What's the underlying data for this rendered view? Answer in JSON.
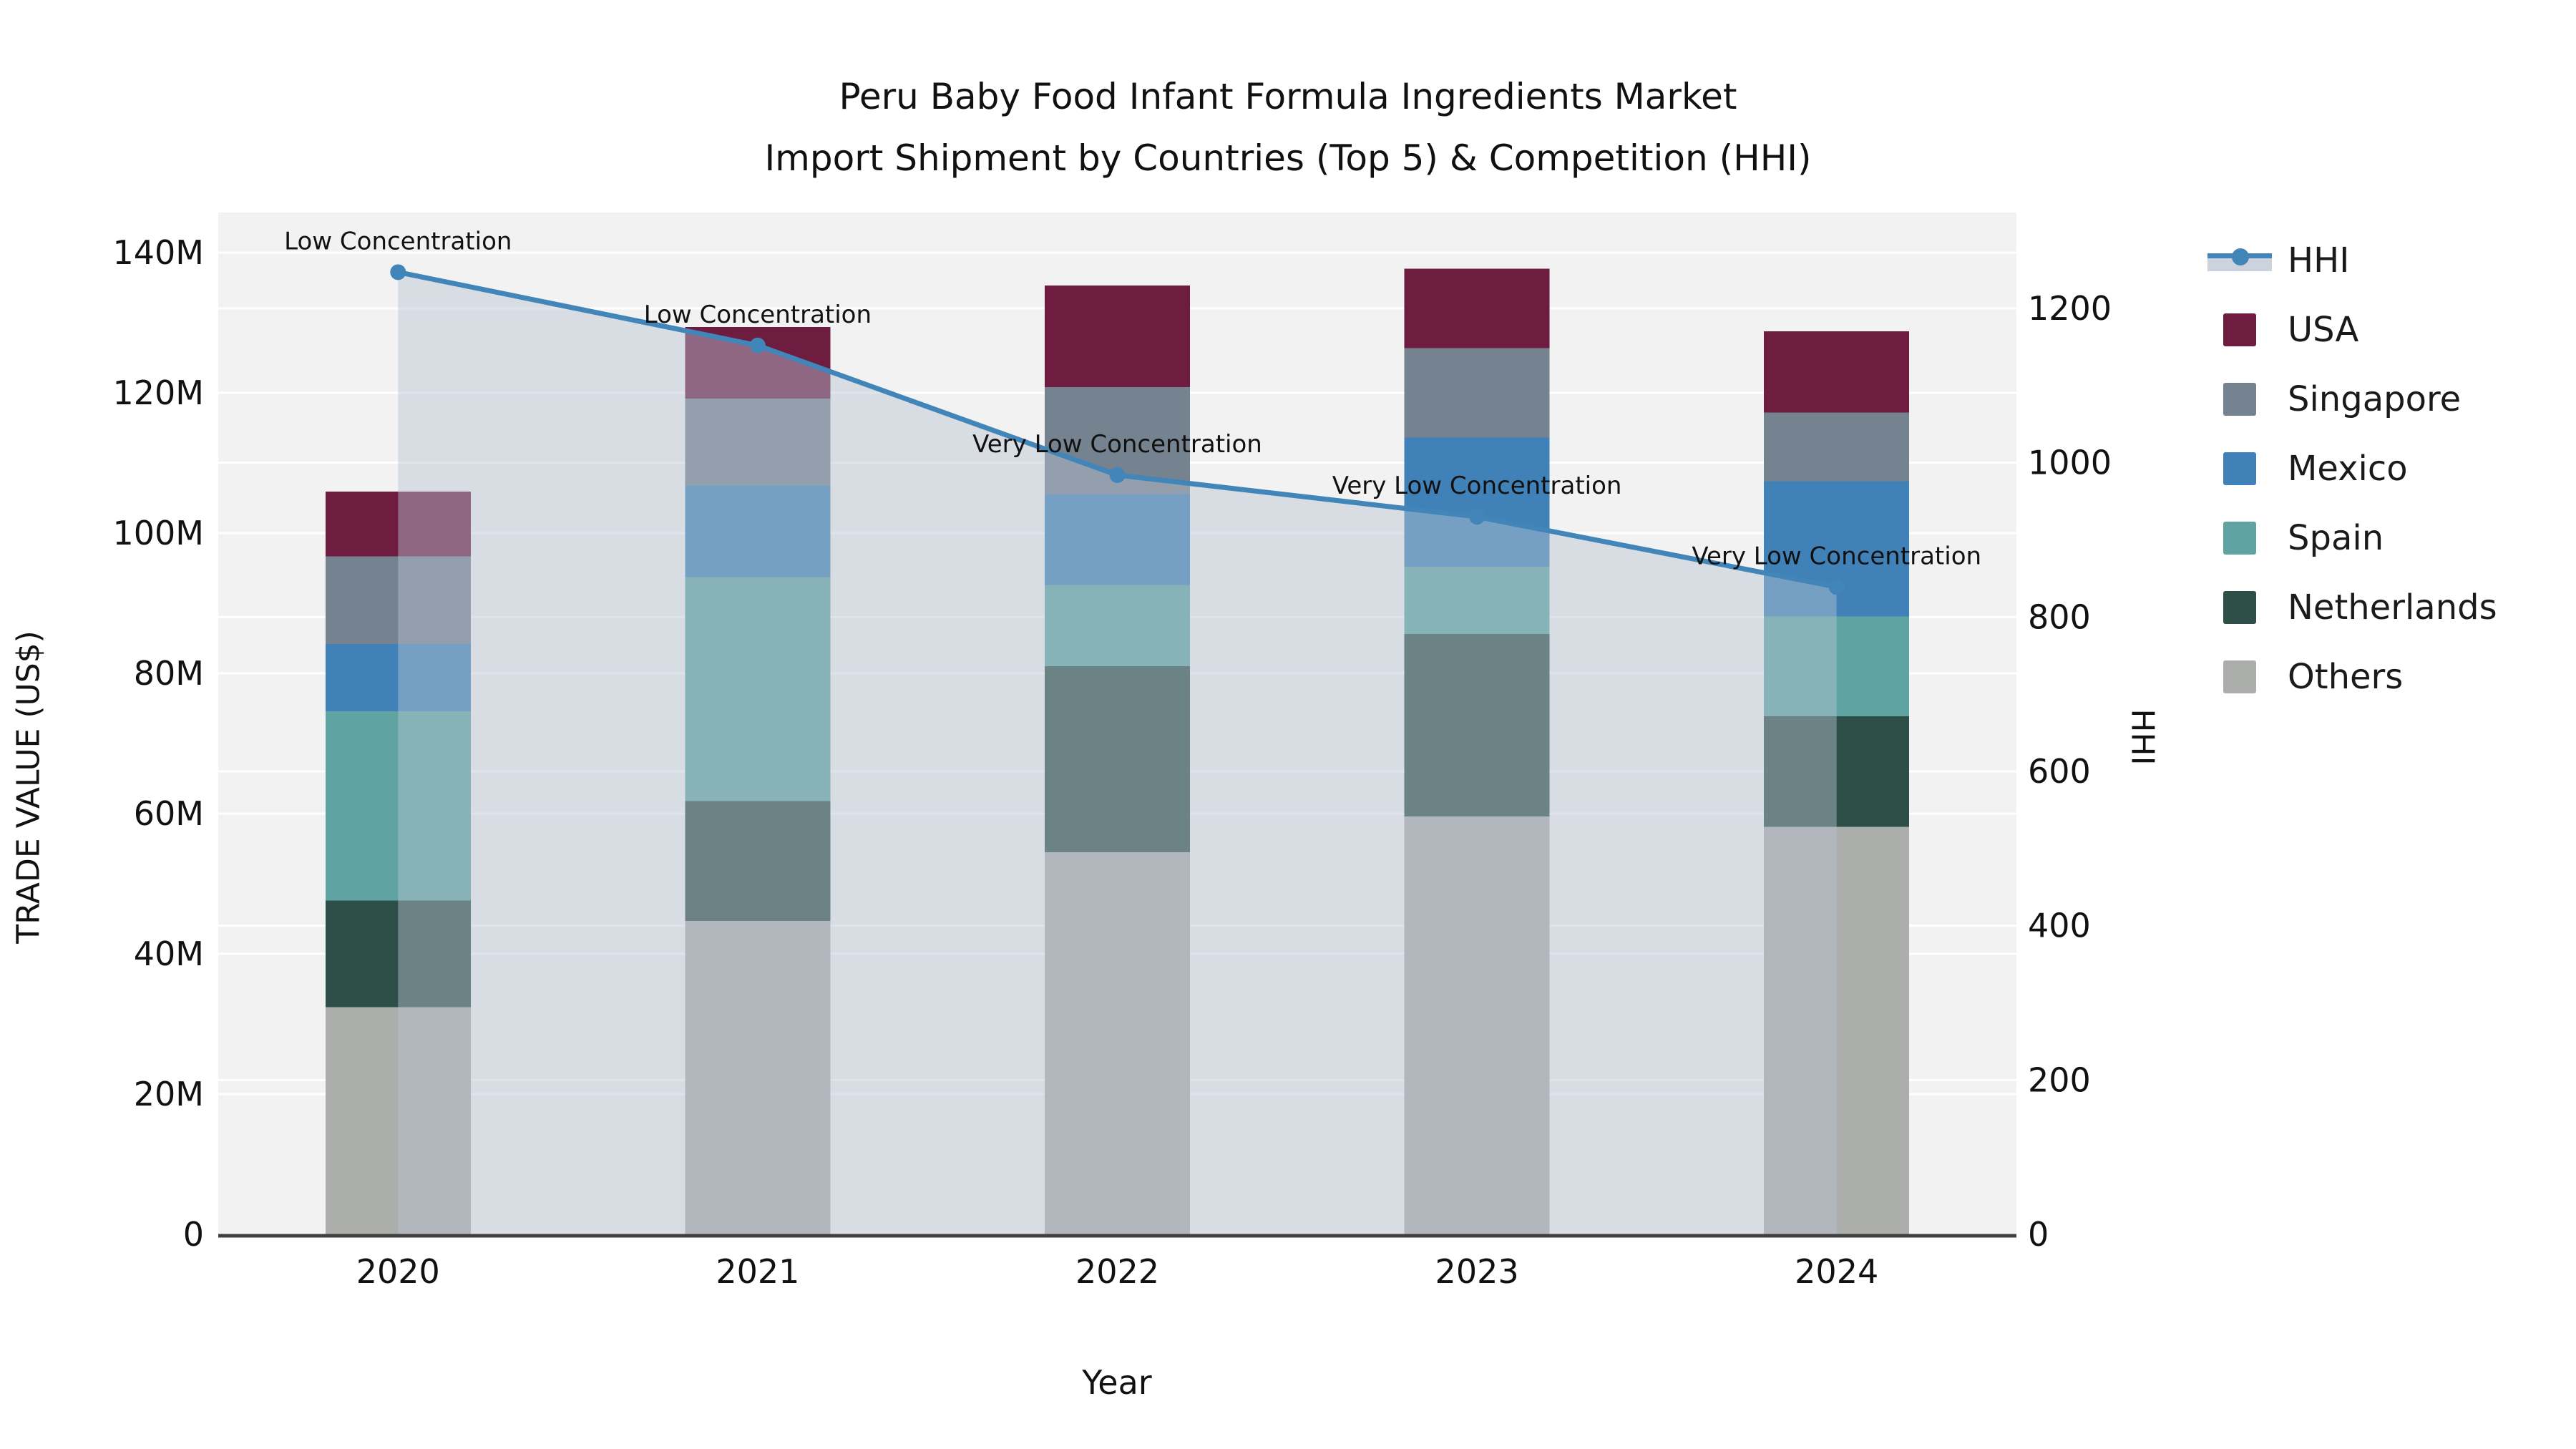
{
  "title": {
    "line1": "Peru Baby Food Infant Formula Ingredients Market",
    "line2": "Import Shipment by Countries (Top 5) & Competition (HHI)"
  },
  "colors": {
    "plot_bg": "#f2f2f2",
    "gridline": "#ffffff",
    "axis_line": "#3f3f3f",
    "text": "#111111",
    "hhi_line": "#4285b8",
    "hhi_fill": "rgba(185,196,210,0.45)",
    "hhi_band": "#ccd3dc"
  },
  "legend": {
    "items": [
      {
        "label": "HHI",
        "type": "line",
        "color": "#4285b8"
      },
      {
        "label": "USA",
        "type": "box",
        "color": "#6e1c40"
      },
      {
        "label": "Singapore",
        "type": "box",
        "color": "#75828f"
      },
      {
        "label": "Mexico",
        "type": "box",
        "color": "#4081b8"
      },
      {
        "label": "Spain",
        "type": "box",
        "color": "#5fa4a3"
      },
      {
        "label": "Netherlands",
        "type": "box",
        "color": "#2e4f48"
      },
      {
        "label": "Others",
        "type": "box",
        "color": "#acaeab"
      }
    ]
  },
  "chart_data": {
    "type": "bar",
    "stacked": true,
    "title": "Peru Baby Food Infant Formula Ingredients Market Import Shipment by Countries (Top 5) & Competition (HHI)",
    "xlabel": "Year",
    "ylabel": "TRADE VALUE (US$)",
    "ylabel_right": "HHI",
    "unit": "million US$",
    "grid": true,
    "legend_position": "right",
    "categories": [
      "2020",
      "2021",
      "2022",
      "2023",
      "2024"
    ],
    "series": [
      {
        "name": "USA",
        "color": "#6e1c40",
        "values": [
          9.2,
          10.2,
          14.5,
          11.3,
          11.6
        ]
      },
      {
        "name": "Singapore",
        "color": "#75828f",
        "values": [
          12.5,
          12.4,
          15.3,
          12.8,
          9.8
        ]
      },
      {
        "name": "Mexico",
        "color": "#4081b8",
        "values": [
          9.6,
          13.1,
          12.9,
          18.4,
          19.3
        ]
      },
      {
        "name": "Spain",
        "color": "#5fa4a3",
        "values": [
          27.0,
          31.9,
          11.6,
          9.6,
          14.2
        ]
      },
      {
        "name": "Netherlands",
        "color": "#2e4f48",
        "values": [
          15.2,
          17.1,
          26.5,
          26.0,
          15.8
        ]
      },
      {
        "name": "Others",
        "color": "#acaeab",
        "values": [
          32.4,
          44.7,
          54.5,
          59.6,
          58.1
        ]
      }
    ],
    "totals": [
      105.9,
      129.4,
      135.3,
      137.7,
      128.8
    ],
    "line_series": {
      "name": "HHI",
      "axis": "right",
      "color": "#4285b8",
      "fill_color": "rgba(185,196,210,0.45)",
      "values": [
        1247,
        1152,
        984,
        930,
        839
      ]
    },
    "annotations": [
      "Low Concentration",
      "Low Concentration",
      "Very Low Concentration",
      "Very Low Concentration",
      "Very Low Concentration"
    ],
    "ylim_left": [
      0,
      140
    ],
    "yticks_left": [
      "0",
      "20M",
      "40M",
      "60M",
      "80M",
      "100M",
      "120M",
      "140M"
    ],
    "ylim_right": [
      0,
      1300
    ],
    "yticks_right": [
      "0",
      "200",
      "400",
      "600",
      "800",
      "1000",
      "1200"
    ]
  }
}
